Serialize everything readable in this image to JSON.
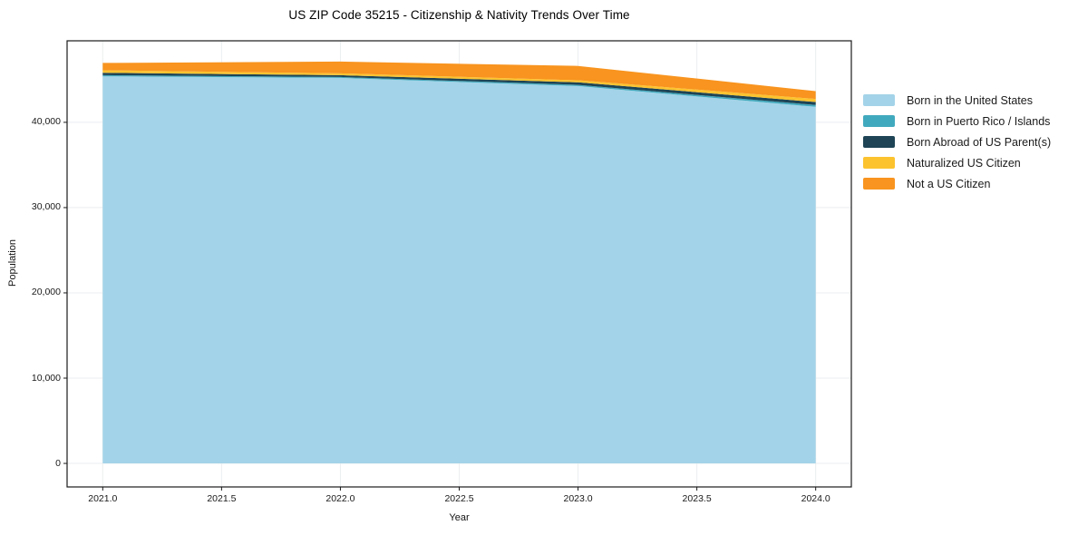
{
  "chart_data": {
    "type": "area",
    "stacked": true,
    "title": "US ZIP Code 35215 - Citizenship & Nativity Trends Over Time",
    "xlabel": "Year",
    "ylabel": "Population",
    "x": [
      2021,
      2022,
      2023,
      2024
    ],
    "series": [
      {
        "name": "Born in the United States",
        "color": "#a3d3e8",
        "values": [
          45390,
          45210,
          44250,
          41820
        ]
      },
      {
        "name": "Born in Puerto Rico / Islands",
        "color": "#41a9bd",
        "values": [
          140,
          110,
          140,
          210
        ]
      },
      {
        "name": "Born Abroad of US Parent(s)",
        "color": "#1e4455",
        "values": [
          280,
          210,
          300,
          350
        ]
      },
      {
        "name": "Naturalized US Citizen",
        "color": "#fcc32f",
        "values": [
          290,
          210,
          240,
          360
        ]
      },
      {
        "name": "Not a US Citizen",
        "color": "#f8941f",
        "values": [
          860,
          1380,
          1680,
          920
        ]
      }
    ],
    "stack_totals": [
      46960,
      47120,
      46610,
      43660
    ],
    "xlim": [
      2020.85,
      2024.15
    ],
    "ylim": [
      -2760,
      49560
    ],
    "xticks": {
      "values": [
        2021.0,
        2021.5,
        2022.0,
        2022.5,
        2023.0,
        2023.5,
        2024.0
      ],
      "labels": [
        "2021.0",
        "2021.5",
        "2022.0",
        "2022.5",
        "2023.0",
        "2023.5",
        "2024.0"
      ]
    },
    "yticks": {
      "values": [
        0,
        10000,
        20000,
        30000,
        40000
      ],
      "labels": [
        "0",
        "10,000",
        "20,000",
        "30,000",
        "40,000"
      ]
    },
    "grid": true,
    "legend_position": "outside-right",
    "colors": {
      "background": "#ffffff",
      "grid": "#ebeef0",
      "spine": "#1a1a1a",
      "tick_text": "#191919"
    }
  }
}
